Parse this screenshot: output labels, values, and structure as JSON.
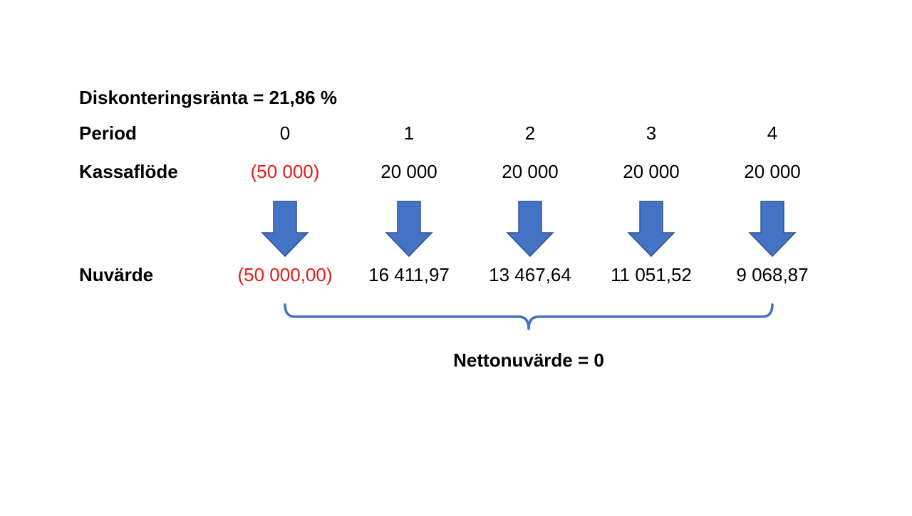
{
  "title": "Diskonteringsränta = 21,86 %",
  "rows": [
    {
      "label": "Period",
      "cells": [
        "0",
        "1",
        "2",
        "3",
        "4"
      ]
    },
    {
      "label": "Kassaflöde",
      "cells": [
        "(50 000)",
        "20 000",
        "20 000",
        "20 000",
        "20 000"
      ]
    },
    {
      "label": "Nuvärde",
      "cells": [
        "(50 000,00)",
        "16 411,97",
        "13 467,64",
        "11 051,52",
        "9 068,87"
      ]
    }
  ],
  "result": "Nettonuvärde = 0"
}
